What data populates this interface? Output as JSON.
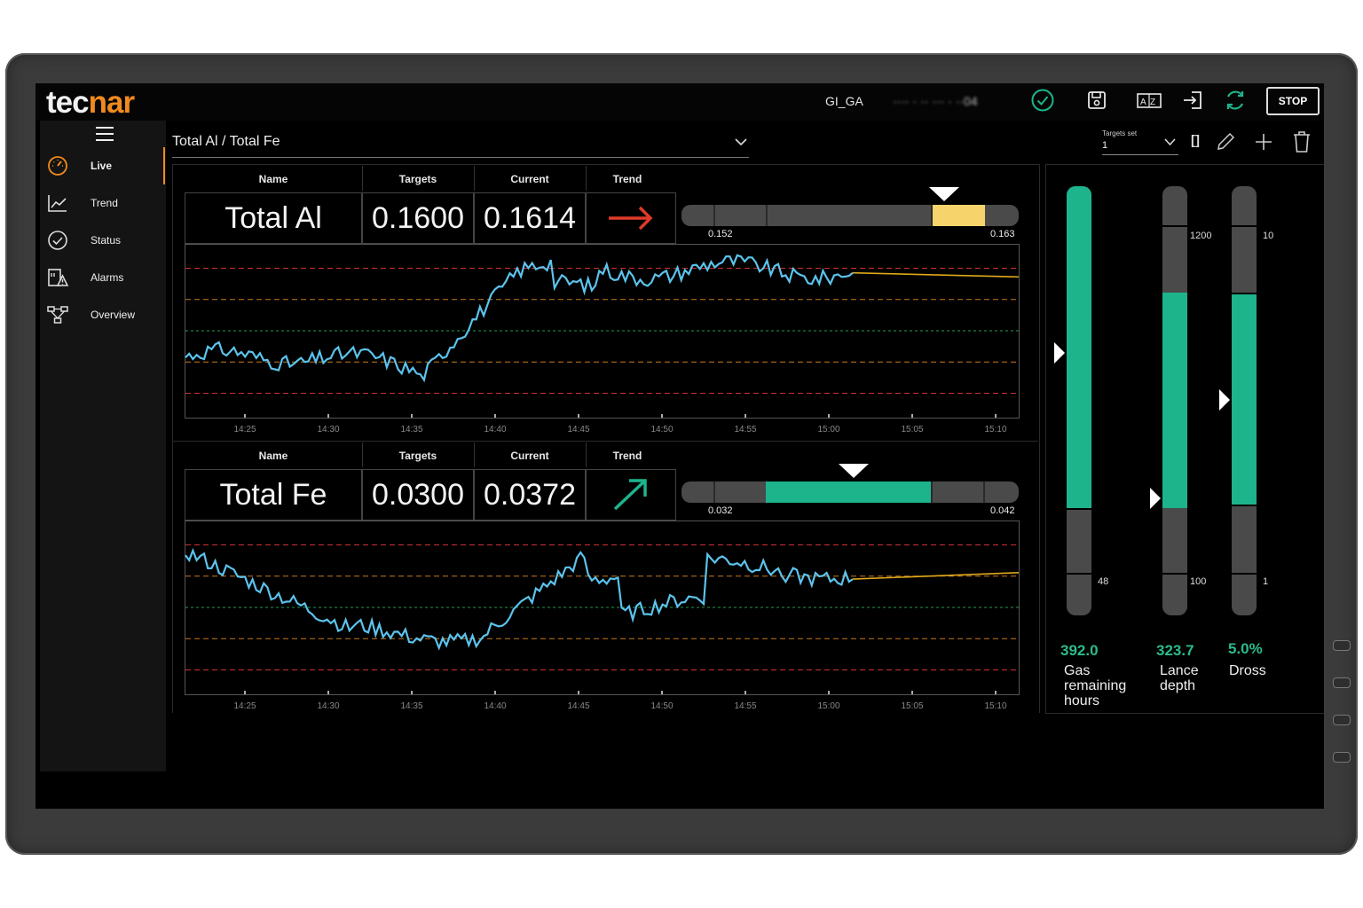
{
  "brand": {
    "logo_a": "tec",
    "logo_b": "n",
    "logo_c": "ar"
  },
  "topbar": {
    "station": "GI_GA",
    "obscured_text": "···· · ·· ··· · ··04",
    "stop_label": "STOP"
  },
  "icons": {
    "ok": "check-circle-icon",
    "save": "save-icon",
    "lang": "language-icon",
    "login": "login-icon",
    "refresh": "refresh-icon",
    "menu": "hamburger-icon"
  },
  "sidebar": {
    "items": [
      {
        "label": "Live",
        "icon": "gauge-icon",
        "active": true
      },
      {
        "label": "Trend",
        "icon": "chart-line-icon"
      },
      {
        "label": "Status",
        "icon": "check-circle-icon"
      },
      {
        "label": "Alarms",
        "icon": "alarm-icon"
      },
      {
        "label": "Overview",
        "icon": "network-icon"
      }
    ]
  },
  "selector": {
    "value": "Total Al / Total Fe"
  },
  "targets_set": {
    "label": "Targets set",
    "value": "1"
  },
  "toolbar": {
    "brackets": "[]"
  },
  "colors": {
    "accent": "#f08a1e",
    "green": "#1db48c",
    "yellow": "#f6d36b",
    "series": "#5cc3ec",
    "forecast": "#e0a81a",
    "limit_red": "#d03030",
    "limit_orange": "#c87a1e",
    "target_green": "#1f9c50"
  },
  "table_headers": {
    "name": "Name",
    "targets": "Targets",
    "current": "Current",
    "trend": "Trend"
  },
  "panels": [
    {
      "name": "Total Al",
      "target": "0.1600",
      "current": "0.1614",
      "trend_icon": "arrow-right-icon",
      "trend_color": "#e03a2a",
      "range_min": "0.152",
      "range_max": "0.163",
      "indicator_fill": "yellow",
      "indicator_from": 0.745,
      "indicator_to": 0.9,
      "marker_pos": 0.78,
      "x_ticks": [
        "14:25",
        "14:30",
        "14:35",
        "14:40",
        "14:45",
        "14:50",
        "14:55",
        "15:00",
        "15:05",
        "15:10"
      ]
    },
    {
      "name": "Total Fe",
      "target": "0.0300",
      "current": "0.0372",
      "trend_icon": "arrow-up-right-icon",
      "trend_color": "#1db48c",
      "range_min": "0.032",
      "range_max": "0.042",
      "indicator_fill": "green",
      "indicator_from": 0.25,
      "indicator_to": 0.74,
      "marker_pos": 0.51,
      "x_ticks": [
        "14:25",
        "14:30",
        "14:35",
        "14:40",
        "14:45",
        "14:50",
        "14:55",
        "15:00",
        "15:05",
        "15:10"
      ]
    }
  ],
  "gauges": [
    {
      "value": "392.0",
      "label_lines": [
        "Gas",
        "remaining",
        "hours"
      ],
      "tick_low": "48",
      "tick_high": ""
    },
    {
      "value": "323.7",
      "label_lines": [
        "Lance",
        "depth"
      ],
      "tick_low": "100",
      "tick_high": "1200"
    },
    {
      "value": "5.0%",
      "label_lines": [
        "Dross"
      ],
      "tick_low": "1",
      "tick_high": "10"
    }
  ]
}
